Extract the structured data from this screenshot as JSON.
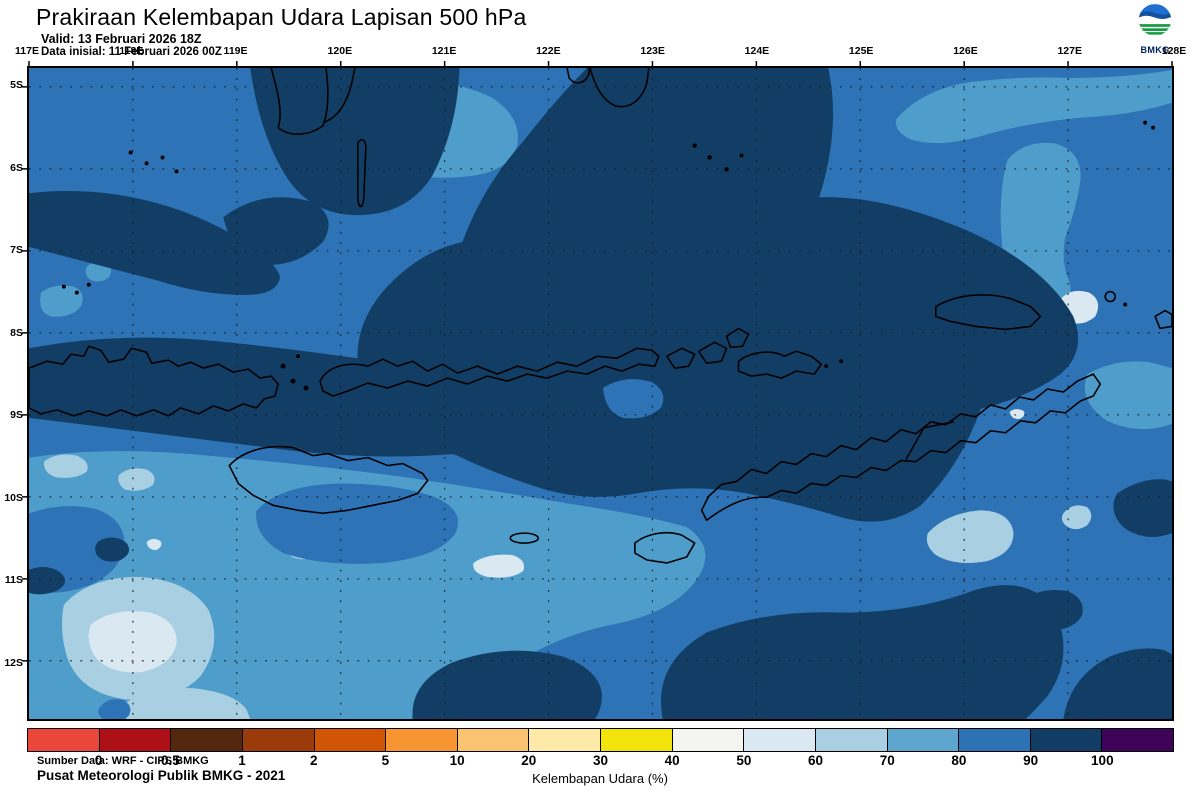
{
  "header": {
    "title": "Prakiraan Kelembapan Udara Lapisan 500 hPa",
    "valid": "Valid: 13 Februari 2026 18Z",
    "init": "Data inisial: 11 Februari 2026 00Z"
  },
  "logo": {
    "text": "BMKG"
  },
  "map": {
    "lon_labels": [
      "117E",
      "118E",
      "119E",
      "120E",
      "121E",
      "122E",
      "123E",
      "124E",
      "125E",
      "126E",
      "127E",
      "128E"
    ],
    "lat_labels": [
      "5S",
      "6S",
      "7S",
      "8S",
      "9S",
      "10S",
      "11S",
      "12S"
    ],
    "source_line1": "Sumber Data: WRF - CIPS BMKG",
    "source_line2": "Pusat Meteorologi Publik BMKG - 2021",
    "fill_colors": {
      "rh_50_60": "#d9e8f1",
      "rh_60_70": "#a9cfe2",
      "rh_70_80": "#4f9dca",
      "rh_80_90": "#2d73b5",
      "rh_90_100": "#123e65"
    }
  },
  "colorbar": {
    "caption": "Kelembapan Udara (%)",
    "tick_labels": [
      "0",
      "0.5",
      "1",
      "2",
      "5",
      "10",
      "20",
      "30",
      "40",
      "50",
      "60",
      "70",
      "80",
      "90",
      "100"
    ],
    "segment_colors": [
      "#e8473a",
      "#ad1016",
      "#53280e",
      "#993b0a",
      "#d25405",
      "#f79533",
      "#fbc473",
      "#fde9a8",
      "#f2e30b",
      "#f4f4f1",
      "#d9e8f1",
      "#a9cfe2",
      "#5ea6cd",
      "#2d72b5",
      "#113d65",
      "#3c0359"
    ]
  }
}
